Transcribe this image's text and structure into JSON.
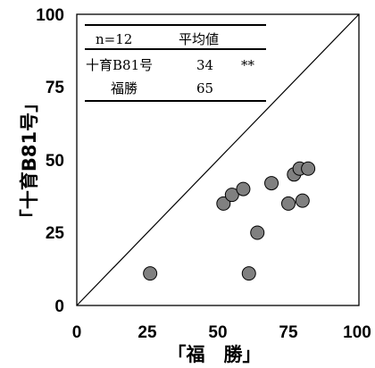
{
  "chart_data": {
    "type": "scatter",
    "xlabel": "「福　勝」",
    "ylabel": "「十育B81号」",
    "xlim": [
      0,
      100
    ],
    "ylim": [
      0,
      100
    ],
    "x_ticks": [
      "0",
      "25",
      "50",
      "75",
      "100"
    ],
    "y_ticks": [
      "0",
      "25",
      "50",
      "75",
      "100"
    ],
    "grid": false,
    "reference_line": "y = x",
    "points": [
      {
        "x": 26,
        "y": 11
      },
      {
        "x": 52,
        "y": 35
      },
      {
        "x": 55,
        "y": 38
      },
      {
        "x": 59,
        "y": 40
      },
      {
        "x": 61,
        "y": 11
      },
      {
        "x": 64,
        "y": 25
      },
      {
        "x": 69,
        "y": 42
      },
      {
        "x": 75,
        "y": 35
      },
      {
        "x": 77,
        "y": 45
      },
      {
        "x": 79,
        "y": 47
      },
      {
        "x": 80,
        "y": 36
      },
      {
        "x": 82,
        "y": 47
      }
    ],
    "marker_color": "#808080",
    "table": {
      "header": [
        "n=12",
        "平均値",
        ""
      ],
      "rows": [
        [
          "十育B81号",
          "34",
          "**"
        ],
        [
          "福勝",
          "65",
          ""
        ]
      ]
    }
  }
}
